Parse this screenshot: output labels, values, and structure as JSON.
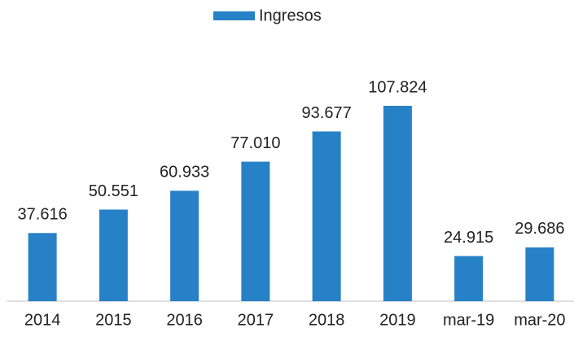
{
  "chart_data": {
    "type": "bar",
    "categories": [
      "2014",
      "2015",
      "2016",
      "2017",
      "2018",
      "2019",
      "mar-19",
      "mar-20"
    ],
    "series": [
      {
        "name": "Ingresos",
        "color": "#2781c6",
        "values": [
          37616,
          50551,
          60933,
          77010,
          93677,
          107824,
          24915,
          29686
        ],
        "value_labels": [
          "37.616",
          "50.551",
          "60.933",
          "77.010",
          "93.677",
          "107.824",
          "24.915",
          "29.686"
        ]
      }
    ],
    "legend": "top"
  }
}
